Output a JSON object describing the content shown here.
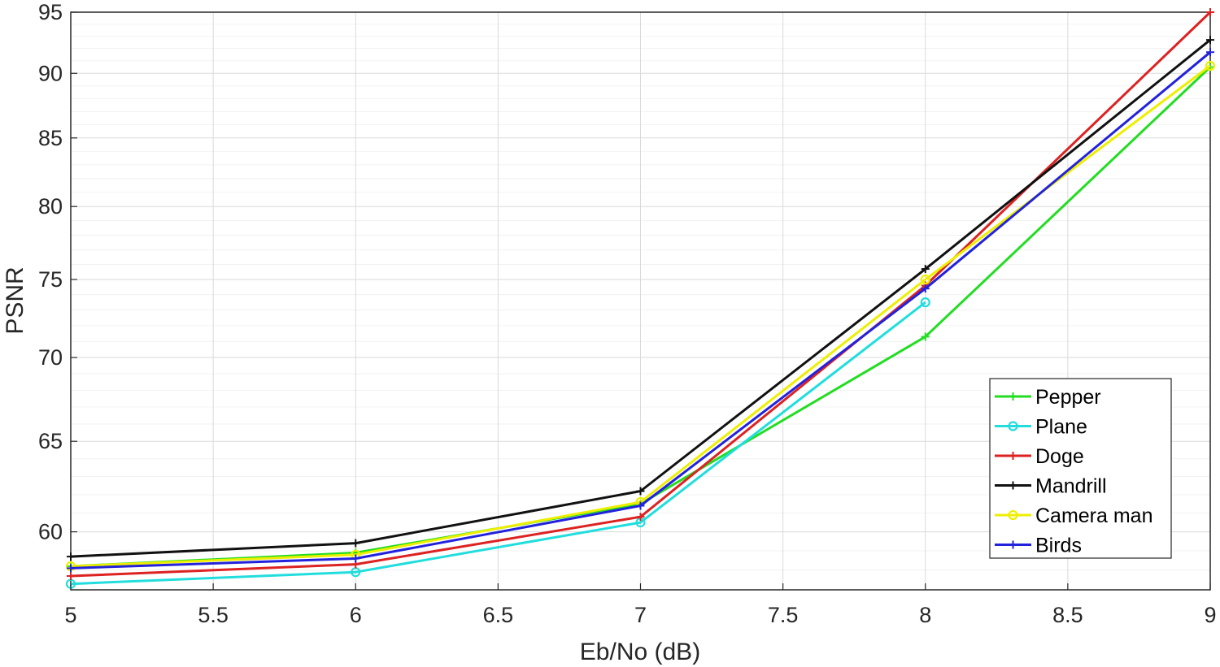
{
  "chart_data": {
    "type": "line",
    "xlabel": "Eb/No (dB)",
    "ylabel": "PSNR",
    "xlim": [
      5,
      9
    ],
    "ylim": [
      57,
      95
    ],
    "y_scale": "log",
    "x_ticks": [
      "5",
      "5.5",
      "6",
      "6.5",
      "7",
      "7.5",
      "8",
      "8.5",
      "9"
    ],
    "y_ticks": [
      "60",
      "65",
      "70",
      "75",
      "80",
      "85",
      "90",
      "95"
    ],
    "grid": true,
    "legend_position": "bottom-right",
    "series": [
      {
        "name": "Pepper",
        "color": "#22dd22",
        "marker": "plus",
        "x": [
          5,
          6,
          7,
          8,
          9
        ],
        "y": [
          58.2,
          58.9,
          61.5,
          71.3,
          90.5
        ]
      },
      {
        "name": "Plane",
        "color": "#22dddd",
        "marker": "circle",
        "x": [
          5,
          6,
          7,
          8
        ],
        "y": [
          57.3,
          57.9,
          60.5,
          73.5
        ]
      },
      {
        "name": "Doge",
        "color": "#dd2222",
        "marker": "plus",
        "x": [
          5,
          6,
          7,
          8,
          9
        ],
        "y": [
          57.7,
          58.3,
          60.8,
          74.6,
          95.0
        ]
      },
      {
        "name": "Mandrill",
        "color": "#111111",
        "marker": "plus",
        "x": [
          5,
          6,
          7,
          8,
          9
        ],
        "y": [
          58.7,
          59.4,
          62.2,
          75.7,
          92.7
        ]
      },
      {
        "name": "Camera man",
        "color": "#eeee00",
        "marker": "circle",
        "x": [
          5,
          6,
          7,
          8,
          9
        ],
        "y": [
          58.2,
          58.8,
          61.6,
          75.0,
          90.6
        ]
      },
      {
        "name": "Birds",
        "color": "#2222dd",
        "marker": "plus",
        "x": [
          5,
          6,
          7,
          8,
          9
        ],
        "y": [
          58.1,
          58.6,
          61.4,
          74.4,
          91.7
        ]
      }
    ]
  }
}
